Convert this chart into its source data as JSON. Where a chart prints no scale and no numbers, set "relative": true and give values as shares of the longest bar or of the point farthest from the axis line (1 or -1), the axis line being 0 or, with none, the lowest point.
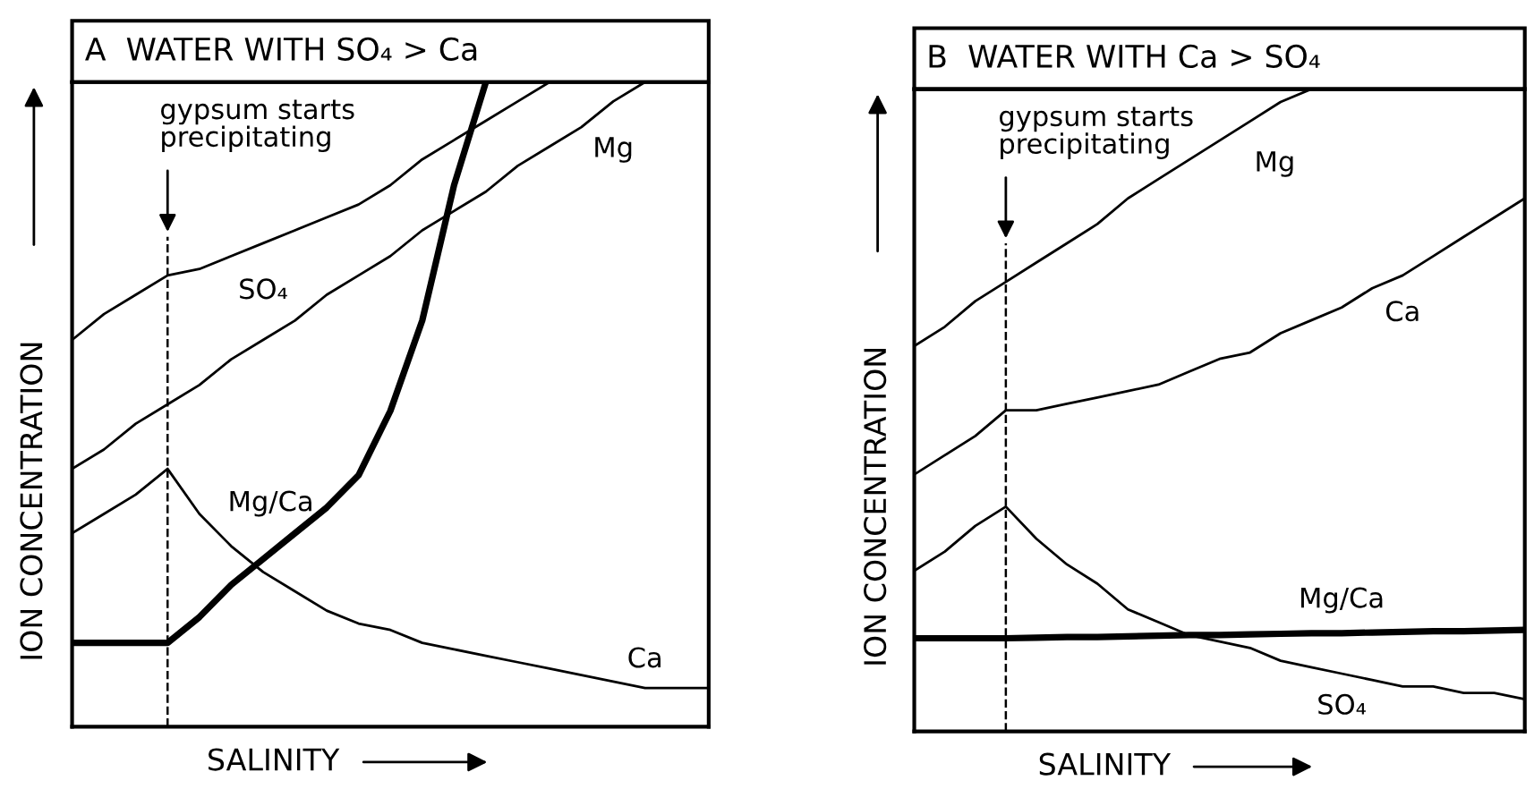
{
  "chart_data": [
    {
      "type": "line",
      "relative": true,
      "title": "A  WATER WITH SO₄ > Ca",
      "xlabel": "SALINITY",
      "ylabel": "ION CONCENTRATION",
      "marker": "none",
      "line_style": "solid",
      "categories": [
        null,
        null,
        null,
        null,
        null,
        null,
        null,
        null,
        null,
        null,
        null,
        null,
        null,
        null,
        null,
        null,
        null,
        null,
        null,
        null,
        null
      ],
      "annotations": [
        "gypsum starts\nprecipitating"
      ],
      "series": [
        {
          "name": "SO₄",
          "color": "#000000",
          "values": [
            0.6,
            0.64,
            0.67,
            0.7,
            0.71,
            0.73,
            0.75,
            0.77,
            0.79,
            0.81,
            0.84,
            0.88,
            0.91,
            0.94,
            0.97,
            1.0,
            null,
            null,
            null,
            null,
            null
          ]
        },
        {
          "name": "Mg",
          "color": "#000000",
          "values": [
            0.4,
            0.43,
            0.47,
            0.5,
            0.53,
            0.57,
            0.6,
            0.63,
            0.67,
            0.7,
            0.73,
            0.77,
            0.8,
            0.83,
            0.87,
            0.9,
            0.93,
            0.97,
            1.0,
            null,
            null
          ]
        },
        {
          "name": "Mg/Ca",
          "color": "#000000",
          "values": [
            0.13,
            0.13,
            0.13,
            0.13,
            0.17,
            0.22,
            0.26,
            0.3,
            0.34,
            0.39,
            0.49,
            0.63,
            0.84,
            1.0,
            null,
            null,
            null,
            null,
            null,
            null,
            null
          ]
        },
        {
          "name": "Ca",
          "color": "#000000",
          "values": [
            0.3,
            0.33,
            0.36,
            0.4,
            0.33,
            0.28,
            0.24,
            0.21,
            0.18,
            0.16,
            0.15,
            0.13,
            0.12,
            0.11,
            0.1,
            0.09,
            0.08,
            0.07,
            0.06,
            0.06,
            0.06
          ]
        }
      ]
    },
    {
      "type": "line",
      "relative": true,
      "title": "B  WATER WITH Ca > SO₄",
      "xlabel": "SALINITY",
      "ylabel": "ION CONCENTRATION",
      "marker": "none",
      "line_style": "solid",
      "categories": [
        null,
        null,
        null,
        null,
        null,
        null,
        null,
        null,
        null,
        null,
        null,
        null,
        null,
        null,
        null,
        null,
        null,
        null,
        null,
        null,
        null
      ],
      "annotations": [
        "gypsum starts\nprecipitating"
      ],
      "series": [
        {
          "name": "Mg",
          "color": "#000000",
          "values": [
            0.6,
            0.63,
            0.67,
            0.7,
            0.73,
            0.76,
            0.79,
            0.83,
            0.86,
            0.89,
            0.92,
            0.95,
            0.98,
            1.0,
            null,
            null,
            null,
            null,
            null,
            null,
            null
          ]
        },
        {
          "name": "Ca",
          "color": "#000000",
          "values": [
            0.4,
            0.43,
            0.46,
            0.5,
            0.5,
            0.51,
            0.52,
            0.53,
            0.54,
            0.56,
            0.58,
            0.59,
            0.62,
            0.64,
            0.66,
            0.69,
            0.71,
            0.74,
            0.77,
            0.8,
            0.83
          ]
        },
        {
          "name": "Mg/Ca",
          "color": "#000000",
          "values": [
            0.145,
            0.145,
            0.145,
            0.145,
            0.146,
            0.147,
            0.147,
            0.148,
            0.149,
            0.15,
            0.15,
            0.151,
            0.152,
            0.153,
            0.153,
            0.154,
            0.155,
            0.156,
            0.156,
            0.157,
            0.158
          ]
        },
        {
          "name": "SO₄",
          "color": "#000000",
          "values": [
            0.25,
            0.28,
            0.32,
            0.35,
            0.3,
            0.26,
            0.23,
            0.19,
            0.17,
            0.15,
            0.14,
            0.13,
            0.11,
            0.1,
            0.09,
            0.08,
            0.07,
            0.07,
            0.06,
            0.06,
            0.05
          ]
        }
      ]
    }
  ]
}
